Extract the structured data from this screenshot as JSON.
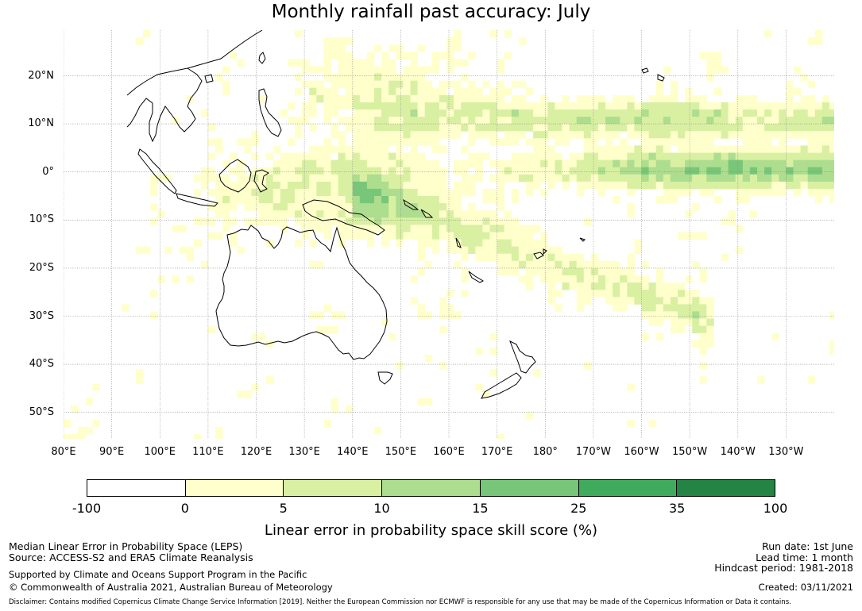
{
  "title": "Monthly rainfall past accuracy: July",
  "map": {
    "lat_labels": [
      "20°N",
      "10°N",
      "0°",
      "10°S",
      "20°S",
      "30°S",
      "40°S",
      "50°S"
    ],
    "lat_values": [
      20,
      10,
      0,
      -10,
      -20,
      -30,
      -40,
      -50
    ],
    "lon_labels": [
      "80°E",
      "90°E",
      "100°E",
      "110°E",
      "120°E",
      "130°E",
      "140°E",
      "150°E",
      "160°E",
      "170°E",
      "180°",
      "170°W",
      "160°W",
      "150°W",
      "140°W",
      "130°W"
    ],
    "lon_values": [
      80,
      90,
      100,
      110,
      120,
      130,
      140,
      150,
      160,
      170,
      180,
      190,
      200,
      210,
      220,
      230
    ],
    "extent": {
      "lon_min": 80,
      "lon_max": 240,
      "lat_min": -55.5,
      "lat_max": 29.5
    }
  },
  "colorbar": {
    "title": "Linear error in probability space skill score (%)",
    "ticks": [
      "-100",
      "0",
      "5",
      "10",
      "15",
      "25",
      "35",
      "100"
    ],
    "colors": [
      "#ffffff",
      "#ffffcc",
      "#d9f0a3",
      "#addd8e",
      "#78c679",
      "#41ab5d",
      "#238443"
    ]
  },
  "footer": {
    "line1": "Median Linear Error in Probability Space (LEPS)",
    "line2": "Source: ACCESS-S2 and ERA5 Climate Reanalysis",
    "line3": "Supported by Climate and Oceans Support Program in the Pacific",
    "line4": "© Commonwealth of Australia 2021, Australian Bureau of Meteorology",
    "run_date": "Run date: 1st June",
    "lead_time": "Lead time: 1 month",
    "hindcast": "Hindcast period: 1981-2018",
    "created": "Created: 03/11/2021",
    "disclaimer": "Disclaimer: Contains modified Copernicus Climate Change Service Information [2019]. Neither the European Commission nor ECMWF is responsible for any use that may be made of the Copernicus Information or Data it contains."
  }
}
